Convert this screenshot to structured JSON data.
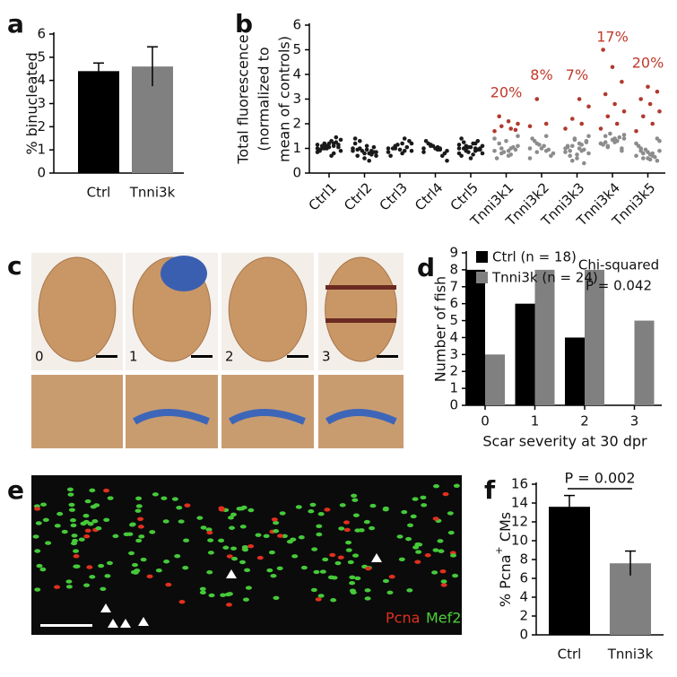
{
  "chart_data": [
    {
      "type": "bar",
      "panel": "a",
      "ylabel": "% binucleated",
      "categories": [
        "Ctrl",
        "Tnni3k"
      ],
      "values": [
        4.4,
        4.6
      ],
      "errors": [
        0.35,
        0.85
      ],
      "colors": [
        "#000000",
        "#808080"
      ],
      "ylim": [
        0,
        6
      ],
      "yticks": [
        0,
        1,
        2,
        3,
        4,
        5,
        6
      ]
    },
    {
      "type": "strip",
      "panel": "b",
      "ylabel": [
        "Total fluorescence",
        "(normalized to",
        "mean of controls)"
      ],
      "ylim": [
        0,
        6
      ],
      "yticks": [
        0,
        1,
        2,
        3,
        4,
        5,
        6
      ],
      "annotation_color": "#c0392b",
      "groups": [
        {
          "name": "Ctrl1",
          "color": "#1a1a1a",
          "values": [
            1.0,
            1.1,
            1.2,
            0.9,
            1.3,
            1.0,
            1.15,
            1.05,
            0.95,
            1.25,
            1.1,
            0.85,
            1.2,
            1.0,
            1.35,
            0.7,
            1.1,
            1.05,
            1.2,
            0.9,
            1.45,
            1.0,
            1.15,
            0.8,
            1.1
          ]
        },
        {
          "name": "Ctrl2",
          "color": "#1a1a1a",
          "values": [
            0.9,
            0.8,
            1.0,
            0.7,
            1.1,
            0.95,
            0.85,
            0.6,
            1.2,
            0.75,
            0.9,
            1.0,
            0.5,
            1.3,
            0.85,
            0.95,
            0.7,
            1.05,
            0.8,
            1.4,
            0.9
          ]
        },
        {
          "name": "Ctrl3",
          "color": "#1a1a1a",
          "values": [
            1.0,
            0.9,
            1.1,
            1.2,
            0.8,
            1.0,
            1.3,
            0.95,
            0.7,
            1.05,
            1.15,
            0.85,
            1.4,
            1.0,
            0.9,
            1.2
          ]
        },
        {
          "name": "Ctrl4",
          "color": "#1a1a1a",
          "values": [
            1.0,
            0.95,
            1.1,
            0.9,
            1.05,
            1.2,
            0.8,
            1.0,
            1.3,
            0.7,
            1.1,
            0.85,
            1.0,
            1.15,
            0.5,
            0.95
          ]
        },
        {
          "name": "Ctrl5",
          "color": "#1a1a1a",
          "values": [
            1.0,
            0.9,
            1.1,
            0.8,
            1.2,
            1.0,
            0.95,
            1.05,
            0.7,
            1.3,
            0.85,
            1.15,
            1.0,
            0.9,
            1.1,
            0.75,
            1.25,
            1.0,
            0.6,
            1.4,
            0.95,
            1.05,
            0.8,
            1.2,
            1.0
          ]
        },
        {
          "name": "Tnni3k1",
          "color": "#8c8c8c",
          "values": [
            0.9,
            1.0,
            0.8,
            1.1,
            0.7,
            1.2,
            0.95,
            1.3,
            0.6,
            1.05,
            0.85,
            1.4,
            0.75,
            1.0,
            1.5,
            0.9
          ],
          "high_values": [
            1.7,
            1.8,
            1.9,
            2.0,
            2.1,
            2.3,
            1.75
          ],
          "high_color": "#b03a2e",
          "annotation": "20%"
        },
        {
          "name": "Tnni3k2",
          "color": "#8c8c8c",
          "values": [
            1.0,
            0.9,
            1.2,
            0.8,
            1.1,
            1.3,
            0.7,
            1.0,
            1.4,
            0.95,
            1.15,
            0.6,
            1.5,
            0.85
          ],
          "high_values": [
            1.9,
            2.0,
            3.0
          ],
          "high_color": "#b03a2e",
          "annotation": "8%"
        },
        {
          "name": "Tnni3k3",
          "color": "#8c8c8c",
          "values": [
            1.0,
            0.9,
            1.1,
            0.8,
            1.2,
            0.7,
            1.3,
            0.6,
            1.05,
            0.95,
            1.4,
            0.85,
            1.15,
            0.5,
            1.5,
            1.0,
            0.9,
            1.25,
            0.75,
            1.1,
            0.4,
            1.35
          ],
          "high_values": [
            1.8,
            2.0,
            2.2,
            2.7,
            3.0
          ],
          "high_color": "#b03a2e",
          "annotation": "7%"
        },
        {
          "name": "Tnni3k4",
          "color": "#8c8c8c",
          "values": [
            1.2,
            1.3,
            1.1,
            1.4,
            1.25,
            1.5,
            1.0,
            1.35,
            1.15,
            1.45,
            1.6,
            1.2,
            1.3,
            1.05,
            1.55,
            1.4,
            1.25,
            0.9
          ],
          "high_values": [
            1.8,
            2.0,
            2.3,
            2.5,
            2.8,
            3.2,
            3.7,
            4.3,
            5.0
          ],
          "high_color": "#b03a2e",
          "annotation": "17%"
        },
        {
          "name": "Tnni3k5",
          "color": "#8c8c8c",
          "values": [
            0.7,
            0.8,
            0.6,
            0.9,
            0.75,
            1.0,
            0.5,
            0.85,
            1.1,
            0.65,
            0.95,
            1.2,
            0.7,
            0.8,
            1.3,
            0.55,
            0.9,
            1.4,
            0.6
          ],
          "high_values": [
            1.7,
            2.0,
            2.3,
            2.5,
            2.8,
            3.0,
            3.3,
            3.5
          ],
          "high_color": "#b03a2e",
          "annotation": "20%"
        }
      ]
    },
    {
      "type": "grouped-bar",
      "panel": "d",
      "ylabel": "Number of fish",
      "xlabel": "Scar severity at 30 dpr",
      "categories": [
        "0",
        "1",
        "2",
        "3"
      ],
      "ylim": [
        0,
        9
      ],
      "yticks": [
        0,
        1,
        2,
        3,
        4,
        5,
        6,
        7,
        8,
        9
      ],
      "series": [
        {
          "name": "Ctrl (n = 18)",
          "color": "#000000",
          "values": [
            8,
            6,
            4,
            0
          ]
        },
        {
          "name": "Tnni3k (n = 24)",
          "color": "#808080",
          "values": [
            3,
            8,
            8,
            5
          ]
        }
      ],
      "annotations": [
        "Chi-squared",
        "P = 0.042"
      ]
    },
    {
      "type": "bar",
      "panel": "f",
      "ylabel": "% Pcna",
      "ylabel_superscript": "+",
      "ylabel_suffix": " CMs",
      "categories": [
        "Ctrl",
        "Tnni3k"
      ],
      "values": [
        13.6,
        7.6
      ],
      "errors": [
        1.2,
        1.3
      ],
      "colors": [
        "#000000",
        "#808080"
      ],
      "ylim": [
        0,
        16
      ],
      "yticks": [
        0,
        2,
        4,
        6,
        8,
        10,
        12,
        14,
        16
      ],
      "annotation": "P = 0.002"
    }
  ],
  "panel_c": {
    "label": "c",
    "scores": [
      "0",
      "1",
      "2",
      "3"
    ]
  },
  "panel_e": {
    "label": "e",
    "stains": [
      {
        "text": "Pcna",
        "color": "#e0301e"
      },
      {
        "text": "Mef2",
        "color": "#4ccf3a"
      }
    ]
  }
}
